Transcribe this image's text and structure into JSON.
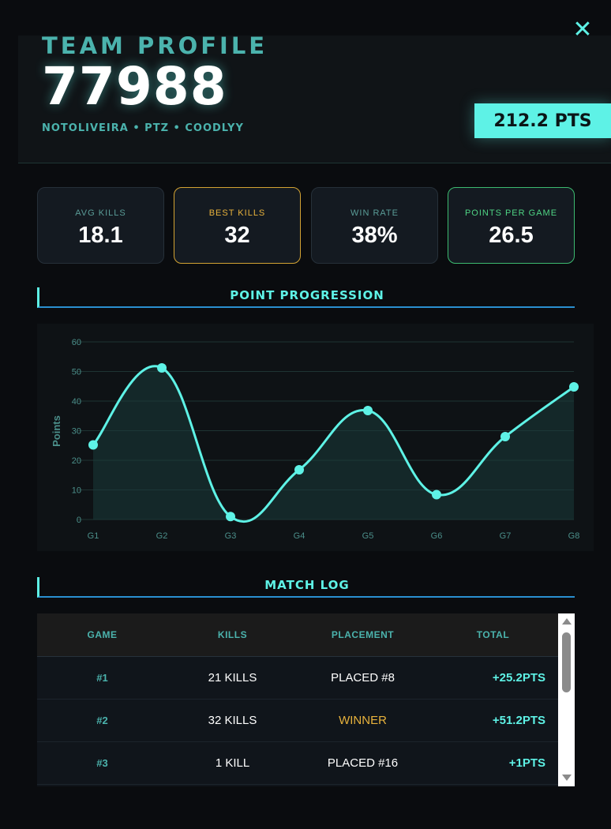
{
  "close_glyph": "✕",
  "header": {
    "label": "TEAM PROFILE",
    "team_id": "77988",
    "members": "NOTOLIVEIRA • PTZ • COODLYY",
    "points_badge": "212.2 PTS"
  },
  "stats": [
    {
      "label": "AVG KILLS",
      "value": "18.1"
    },
    {
      "label": "BEST KILLS",
      "value": "32"
    },
    {
      "label": "WIN RATE",
      "value": "38%"
    },
    {
      "label": "POINTS PER GAME",
      "value": "26.5"
    }
  ],
  "sections": {
    "chart_title": "POINT PROGRESSION",
    "log_title": "MATCH LOG"
  },
  "chart_data": {
    "type": "line",
    "title": "",
    "xlabel": "",
    "ylabel": "Points",
    "categories": [
      "G1",
      "G2",
      "G3",
      "G4",
      "G5",
      "G6",
      "G7",
      "G8"
    ],
    "values": [
      25.2,
      51.2,
      1,
      16.8,
      36.8,
      8.4,
      28,
      44.8
    ],
    "ylim": [
      0,
      60
    ],
    "yticks": [
      0,
      10,
      20,
      30,
      40,
      50,
      60
    ],
    "grid": true,
    "fill": true,
    "colors": {
      "line": "#5ef2e6",
      "fill": "#1a3a3a",
      "grid": "#1f3433",
      "tick": "#4b8f8a"
    }
  },
  "match_log": {
    "headers": [
      "GAME",
      "KILLS",
      "PLACEMENT",
      "TOTAL"
    ],
    "rows": [
      {
        "game": "#1",
        "kills": "21 KILLS",
        "placement": "PLACED #8",
        "total": "+25.2PTS"
      },
      {
        "game": "#2",
        "kills": "32 KILLS",
        "placement": "WINNER",
        "total": "+51.2PTS"
      },
      {
        "game": "#3",
        "kills": "1 KILL",
        "placement": "PLACED #16",
        "total": "+1PTS"
      }
    ]
  }
}
